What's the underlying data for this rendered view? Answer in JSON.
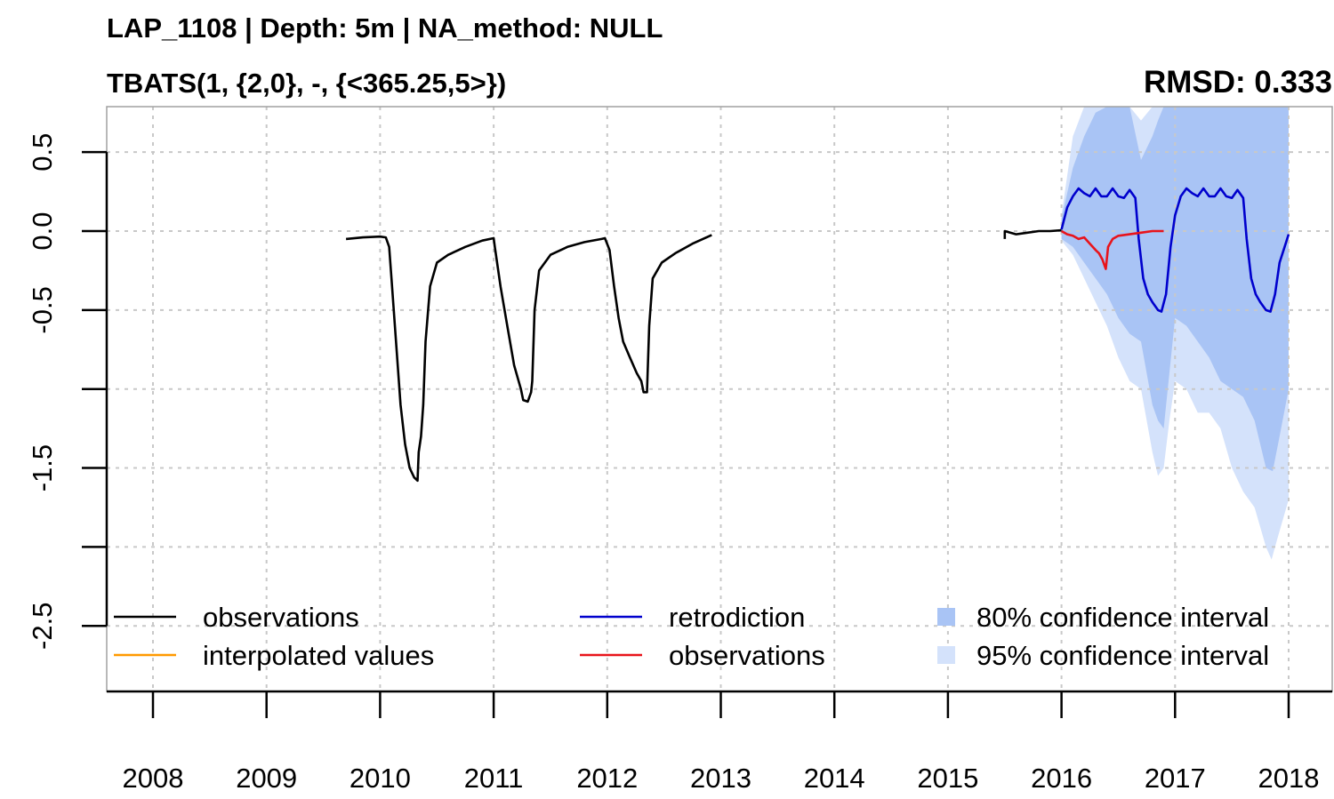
{
  "chart_data": {
    "type": "line",
    "title": "LAP_1108 | Depth: 5m | NA_method: NULL",
    "subtitle": "TBATS(1, {2,0}, -, {<365.25,5>})",
    "metric": "RMSD: 0.333",
    "xlabel": "",
    "ylabel": "",
    "xlim": [
      2007.6,
      2018.4
    ],
    "ylim": [
      -2.9,
      0.8
    ],
    "x_ticks": [
      2008,
      2009,
      2010,
      2011,
      2012,
      2013,
      2014,
      2015,
      2016,
      2017,
      2018
    ],
    "x_tick_labels": [
      "2008",
      "2009",
      "2010",
      "2011",
      "2012",
      "2013",
      "2014",
      "2015",
      "2016",
      "2017",
      "2018"
    ],
    "y_ticks": [
      0.5,
      0.0,
      -0.5,
      -1.0,
      -1.5,
      -2.0,
      -2.5
    ],
    "y_tick_labels": [
      "0.5",
      "0.0",
      "-0.5",
      "",
      "-1.5",
      "",
      "-2.5"
    ],
    "grid": true,
    "legend_placement": "bottom",
    "legend": [
      {
        "label": "observations",
        "kind": "line",
        "color": "#000000"
      },
      {
        "label": "retrodiction",
        "kind": "line",
        "color": "#0000cd"
      },
      {
        "label": "80% confidence interval",
        "kind": "box",
        "color": "#a9c4f5"
      },
      {
        "label": "interpolated values",
        "kind": "line",
        "color": "#ff9900"
      },
      {
        "label": "observations",
        "kind": "line",
        "color": "#e8141b"
      },
      {
        "label": "95% confidence interval",
        "kind": "box",
        "color": "#d4e2fb"
      }
    ],
    "series": [
      {
        "name": "observations",
        "color": "#000000",
        "segments": [
          [
            [
              2009.7,
              -0.05
            ],
            [
              2009.85,
              -0.04
            ],
            [
              2010.0,
              -0.035
            ],
            [
              2010.05,
              -0.04
            ],
            [
              2010.08,
              -0.1
            ],
            [
              2010.1,
              -0.3
            ],
            [
              2010.14,
              -0.7
            ],
            [
              2010.18,
              -1.1
            ],
            [
              2010.22,
              -1.35
            ],
            [
              2010.26,
              -1.5
            ],
            [
              2010.3,
              -1.56
            ],
            [
              2010.33,
              -1.58
            ],
            [
              2010.34,
              -1.4
            ],
            [
              2010.36,
              -1.3
            ],
            [
              2010.38,
              -1.1
            ],
            [
              2010.4,
              -0.7
            ],
            [
              2010.44,
              -0.35
            ],
            [
              2010.5,
              -0.2
            ],
            [
              2010.6,
              -0.15
            ],
            [
              2010.75,
              -0.1
            ],
            [
              2010.9,
              -0.06
            ],
            [
              2011.0,
              -0.045
            ],
            [
              2011.01,
              -0.1
            ],
            [
              2011.06,
              -0.35
            ],
            [
              2011.12,
              -0.6
            ],
            [
              2011.18,
              -0.85
            ],
            [
              2011.24,
              -1.0
            ],
            [
              2011.26,
              -1.07
            ],
            [
              2011.3,
              -1.08
            ],
            [
              2011.33,
              -1.02
            ],
            [
              2011.34,
              -0.95
            ],
            [
              2011.36,
              -0.5
            ],
            [
              2011.4,
              -0.25
            ],
            [
              2011.5,
              -0.15
            ],
            [
              2011.65,
              -0.1
            ],
            [
              2011.8,
              -0.07
            ],
            [
              2011.95,
              -0.05
            ],
            [
              2011.98,
              -0.045
            ],
            [
              2012.02,
              -0.12
            ],
            [
              2012.06,
              -0.35
            ],
            [
              2012.1,
              -0.55
            ],
            [
              2012.14,
              -0.7
            ],
            [
              2012.2,
              -0.8
            ],
            [
              2012.26,
              -0.9
            ],
            [
              2012.3,
              -0.95
            ],
            [
              2012.32,
              -1.02
            ],
            [
              2012.35,
              -1.02
            ],
            [
              2012.37,
              -0.6
            ],
            [
              2012.4,
              -0.3
            ],
            [
              2012.48,
              -0.2
            ],
            [
              2012.6,
              -0.14
            ],
            [
              2012.75,
              -0.08
            ],
            [
              2012.92,
              -0.025
            ]
          ],
          [
            [
              2015.5,
              -0.05
            ],
            [
              2015.5,
              0.0
            ],
            [
              2015.6,
              -0.02
            ],
            [
              2015.7,
              -0.01
            ],
            [
              2015.8,
              0.0
            ],
            [
              2015.9,
              0.0
            ],
            [
              2016.0,
              0.005
            ]
          ]
        ]
      },
      {
        "name": "retrodiction",
        "color": "#0000cd",
        "points": [
          [
            2016.0,
            0.01
          ],
          [
            2016.05,
            0.15
          ],
          [
            2016.1,
            0.22
          ],
          [
            2016.15,
            0.27
          ],
          [
            2016.2,
            0.24
          ],
          [
            2016.25,
            0.22
          ],
          [
            2016.3,
            0.27
          ],
          [
            2016.35,
            0.22
          ],
          [
            2016.4,
            0.22
          ],
          [
            2016.45,
            0.27
          ],
          [
            2016.5,
            0.22
          ],
          [
            2016.55,
            0.21
          ],
          [
            2016.6,
            0.26
          ],
          [
            2016.65,
            0.21
          ],
          [
            2016.68,
            -0.05
          ],
          [
            2016.72,
            -0.3
          ],
          [
            2016.76,
            -0.4
          ],
          [
            2016.8,
            -0.45
          ],
          [
            2016.85,
            -0.5
          ],
          [
            2016.88,
            -0.51
          ],
          [
            2016.92,
            -0.4
          ],
          [
            2016.96,
            -0.1
          ],
          [
            2017.0,
            0.1
          ],
          [
            2017.05,
            0.22
          ],
          [
            2017.1,
            0.27
          ],
          [
            2017.15,
            0.24
          ],
          [
            2017.2,
            0.22
          ],
          [
            2017.25,
            0.27
          ],
          [
            2017.3,
            0.22
          ],
          [
            2017.35,
            0.22
          ],
          [
            2017.4,
            0.27
          ],
          [
            2017.45,
            0.22
          ],
          [
            2017.5,
            0.21
          ],
          [
            2017.55,
            0.26
          ],
          [
            2017.6,
            0.21
          ],
          [
            2017.63,
            -0.05
          ],
          [
            2017.67,
            -0.3
          ],
          [
            2017.71,
            -0.4
          ],
          [
            2017.75,
            -0.45
          ],
          [
            2017.8,
            -0.5
          ],
          [
            2017.84,
            -0.51
          ],
          [
            2017.88,
            -0.4
          ],
          [
            2017.92,
            -0.2
          ],
          [
            2018.0,
            -0.02
          ]
        ]
      },
      {
        "name": "observations",
        "color": "#e8141b",
        "points": [
          [
            2016.0,
            0.0
          ],
          [
            2016.05,
            -0.02
          ],
          [
            2016.1,
            -0.03
          ],
          [
            2016.15,
            -0.05
          ],
          [
            2016.2,
            -0.04
          ],
          [
            2016.25,
            -0.08
          ],
          [
            2016.3,
            -0.12
          ],
          [
            2016.33,
            -0.14
          ],
          [
            2016.36,
            -0.18
          ],
          [
            2016.38,
            -0.22
          ],
          [
            2016.39,
            -0.24
          ],
          [
            2016.41,
            -0.1
          ],
          [
            2016.45,
            -0.05
          ],
          [
            2016.5,
            -0.03
          ],
          [
            2016.6,
            -0.02
          ],
          [
            2016.7,
            -0.01
          ],
          [
            2016.8,
            0.0
          ],
          [
            2016.9,
            0.0
          ]
        ]
      }
    ],
    "ci80": [
      [
        2016.0,
        0.08,
        -0.05
      ],
      [
        2016.1,
        0.4,
        -0.1
      ],
      [
        2016.2,
        0.6,
        -0.2
      ],
      [
        2016.3,
        0.75,
        -0.3
      ],
      [
        2016.4,
        0.8,
        -0.4
      ],
      [
        2016.5,
        0.8,
        -0.55
      ],
      [
        2016.6,
        0.8,
        -0.65
      ],
      [
        2016.7,
        0.45,
        -0.7
      ],
      [
        2016.8,
        0.6,
        -1.1
      ],
      [
        2016.85,
        0.7,
        -1.2
      ],
      [
        2016.9,
        0.8,
        -1.25
      ],
      [
        2016.95,
        0.8,
        -0.9
      ],
      [
        2017.0,
        0.8,
        -0.55
      ],
      [
        2017.1,
        0.8,
        -0.6
      ],
      [
        2017.2,
        0.8,
        -0.7
      ],
      [
        2017.3,
        0.8,
        -0.8
      ],
      [
        2017.4,
        0.8,
        -0.95
      ],
      [
        2017.5,
        0.8,
        -1.0
      ],
      [
        2017.6,
        0.8,
        -1.05
      ],
      [
        2017.7,
        0.8,
        -1.2
      ],
      [
        2017.8,
        0.8,
        -1.5
      ],
      [
        2017.86,
        0.8,
        -1.52
      ],
      [
        2017.92,
        0.8,
        -1.3
      ],
      [
        2018.0,
        0.8,
        -1.0
      ]
    ],
    "ci95": [
      [
        2016.0,
        0.1,
        -0.06
      ],
      [
        2016.1,
        0.6,
        -0.15
      ],
      [
        2016.2,
        0.8,
        -0.3
      ],
      [
        2016.3,
        0.8,
        -0.45
      ],
      [
        2016.4,
        0.8,
        -0.6
      ],
      [
        2016.5,
        0.8,
        -0.8
      ],
      [
        2016.6,
        0.8,
        -0.95
      ],
      [
        2016.7,
        0.7,
        -1.0
      ],
      [
        2016.8,
        0.8,
        -1.4
      ],
      [
        2016.85,
        0.8,
        -1.55
      ],
      [
        2016.9,
        0.8,
        -1.5
      ],
      [
        2016.95,
        0.8,
        -1.2
      ],
      [
        2017.0,
        0.8,
        -0.95
      ],
      [
        2017.1,
        0.8,
        -1.0
      ],
      [
        2017.2,
        0.8,
        -1.15
      ],
      [
        2017.3,
        0.8,
        -1.15
      ],
      [
        2017.4,
        0.8,
        -1.25
      ],
      [
        2017.5,
        0.8,
        -1.5
      ],
      [
        2017.6,
        0.8,
        -1.65
      ],
      [
        2017.7,
        0.8,
        -1.75
      ],
      [
        2017.8,
        0.8,
        -2.0
      ],
      [
        2017.85,
        0.8,
        -2.08
      ],
      [
        2017.9,
        0.8,
        -1.95
      ],
      [
        2018.0,
        0.8,
        -1.7
      ]
    ]
  }
}
